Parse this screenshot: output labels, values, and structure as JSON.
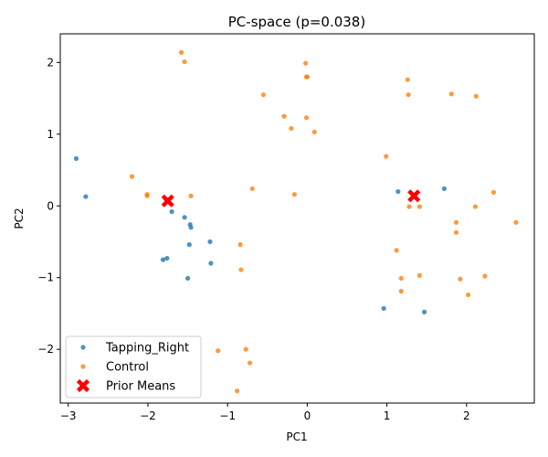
{
  "chart_data": {
    "type": "scatter",
    "title": "PC-space (p=0.038)",
    "xlabel": "PC1",
    "ylabel": "PC2",
    "xlim": [
      -3.1,
      2.85
    ],
    "ylim": [
      -2.75,
      2.4
    ],
    "xticks": [
      -3,
      -2,
      -1,
      0,
      1,
      2
    ],
    "yticks": [
      -2,
      -1,
      0,
      1,
      2
    ],
    "legend_position": "lower-left",
    "series": [
      {
        "name": "Tapping_Right",
        "color": "#1f77b4",
        "marker": "dot",
        "points": [
          [
            -2.9,
            0.66
          ],
          [
            -2.78,
            0.13
          ],
          [
            -1.77,
            0.09
          ],
          [
            -1.7,
            -0.08
          ],
          [
            -1.54,
            -0.16
          ],
          [
            -1.47,
            -0.26
          ],
          [
            -1.46,
            -0.3
          ],
          [
            -1.48,
            -0.54
          ],
          [
            -1.22,
            -0.5
          ],
          [
            -1.21,
            -0.8
          ],
          [
            -1.81,
            -0.75
          ],
          [
            -1.76,
            -0.73
          ],
          [
            -1.5,
            -1.01
          ],
          [
            1.14,
            0.2
          ],
          [
            1.72,
            0.24
          ],
          [
            0.96,
            -1.43
          ],
          [
            1.47,
            -1.48
          ]
        ]
      },
      {
        "name": "Control",
        "color": "#ff7f0e",
        "marker": "dot",
        "points": [
          [
            -1.58,
            2.14
          ],
          [
            -1.54,
            2.01
          ],
          [
            -0.55,
            1.55
          ],
          [
            -0.29,
            1.25
          ],
          [
            -0.2,
            1.08
          ],
          [
            -0.02,
            1.99
          ],
          [
            -0.01,
            1.8
          ],
          [
            0.0,
            1.8
          ],
          [
            -0.01,
            1.23
          ],
          [
            0.09,
            1.03
          ],
          [
            1.26,
            1.76
          ],
          [
            1.27,
            1.55
          ],
          [
            1.81,
            1.56
          ],
          [
            2.12,
            1.53
          ],
          [
            -2.2,
            0.41
          ],
          [
            -2.01,
            0.16
          ],
          [
            -2.01,
            0.14
          ],
          [
            -1.46,
            0.14
          ],
          [
            -0.69,
            0.24
          ],
          [
            -0.16,
            0.16
          ],
          [
            0.99,
            0.69
          ],
          [
            1.28,
            -0.01
          ],
          [
            1.41,
            -0.01
          ],
          [
            2.11,
            -0.01
          ],
          [
            2.34,
            0.19
          ],
          [
            1.87,
            -0.23
          ],
          [
            1.87,
            -0.37
          ],
          [
            2.62,
            -0.23
          ],
          [
            -0.84,
            -0.54
          ],
          [
            -0.83,
            -0.89
          ],
          [
            1.12,
            -0.62
          ],
          [
            1.18,
            -1.01
          ],
          [
            1.18,
            -1.19
          ],
          [
            1.41,
            -0.97
          ],
          [
            1.92,
            -1.02
          ],
          [
            2.23,
            -0.98
          ],
          [
            2.02,
            -1.24
          ],
          [
            -1.12,
            -2.02
          ],
          [
            -0.77,
            -2.0
          ],
          [
            -0.72,
            -2.19
          ],
          [
            -0.88,
            -2.58
          ]
        ]
      },
      {
        "name": "Prior Means",
        "color": "#ff0000",
        "marker": "X",
        "points": [
          [
            -1.75,
            0.07
          ],
          [
            1.34,
            0.14
          ]
        ]
      }
    ]
  }
}
